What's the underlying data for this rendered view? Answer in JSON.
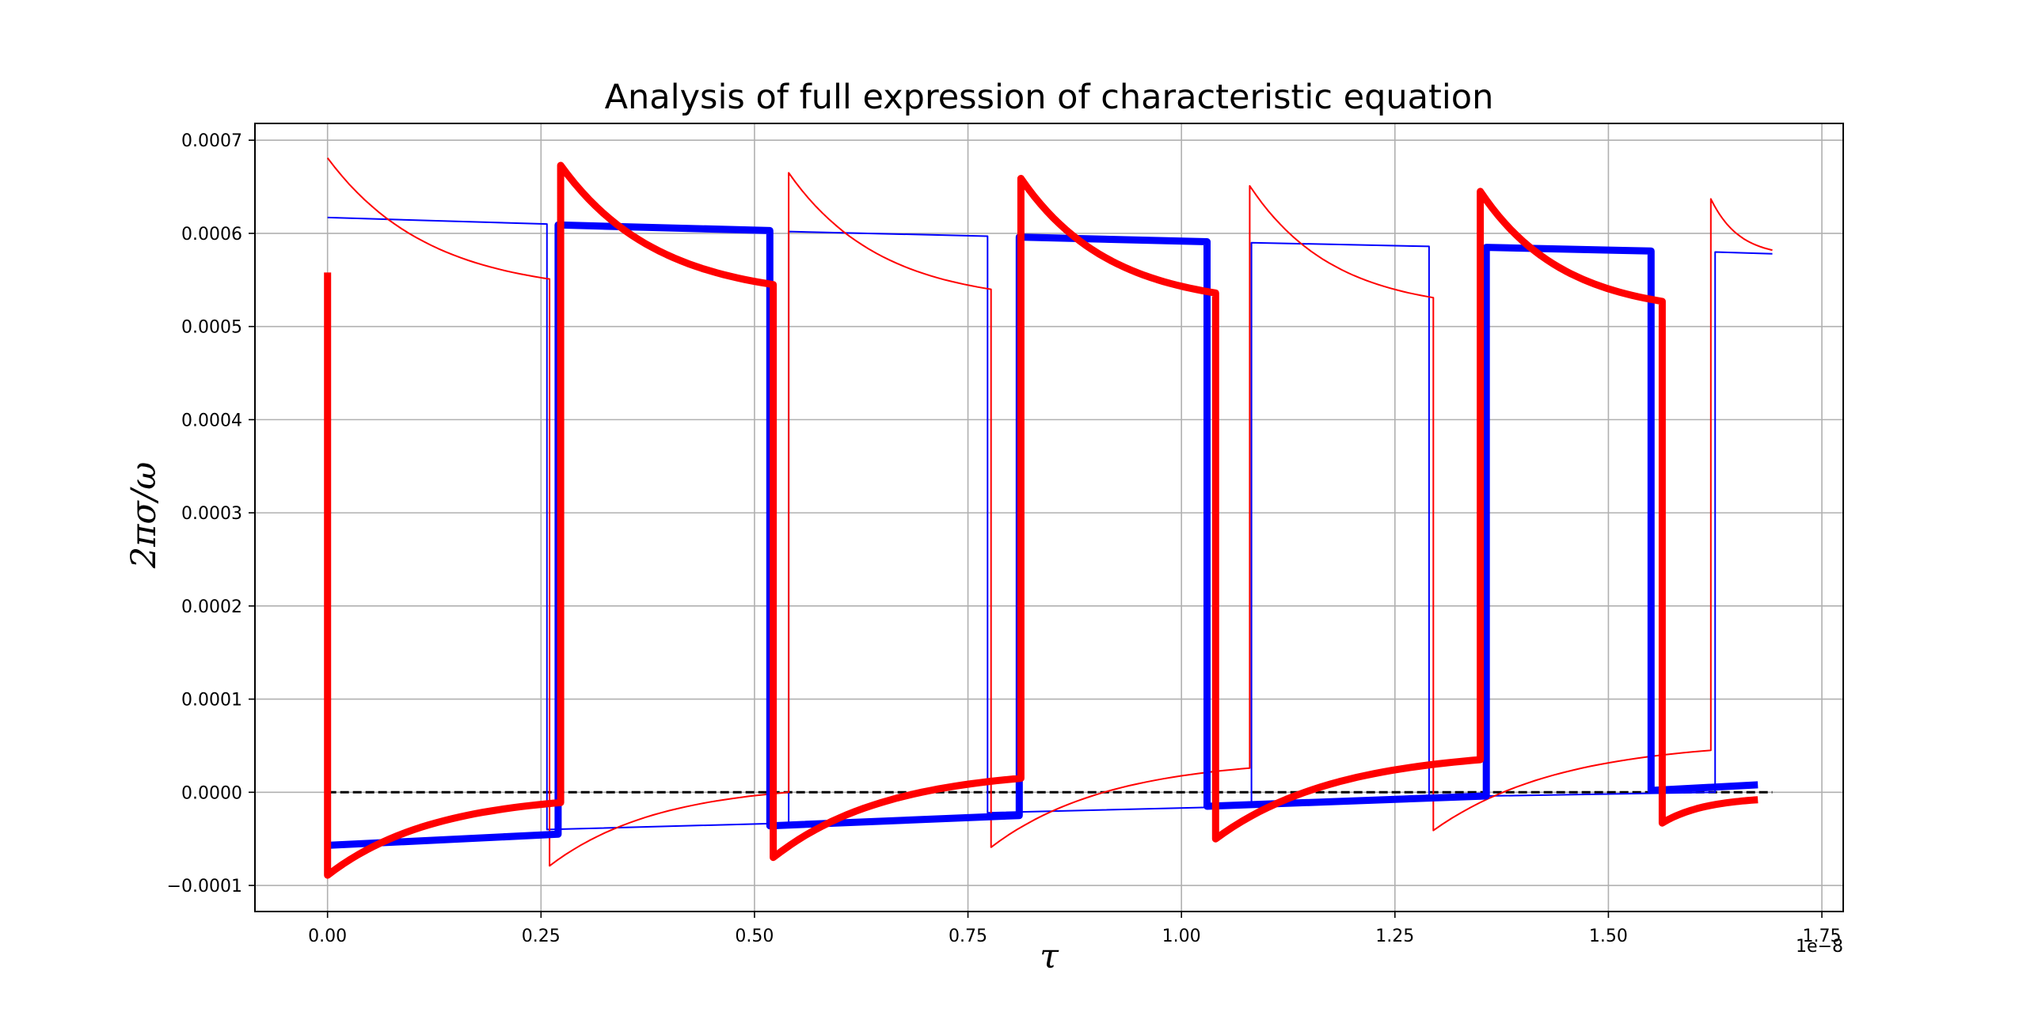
{
  "chart_data": {
    "type": "line",
    "title": "Analysis of full expression of characteristic equation",
    "xlabel": "τ",
    "ylabel": "2πσ/ω",
    "x_offset_text": "1e−8",
    "xlim": [
      -0.085,
      1.775
    ],
    "ylim": [
      -0.000128,
      0.000718
    ],
    "x_ticks": [
      0.0,
      0.25,
      0.5,
      0.75,
      1.0,
      1.25,
      1.5,
      1.75
    ],
    "x_tick_labels": [
      "0.00",
      "0.25",
      "0.50",
      "0.75",
      "1.00",
      "1.25",
      "1.50",
      "1.75"
    ],
    "y_ticks": [
      -0.0001,
      0.0,
      0.0001,
      0.0002,
      0.0003,
      0.0004,
      0.0005,
      0.0006,
      0.0007
    ],
    "y_tick_labels": [
      "−0.0001",
      "0.0000",
      "0.0001",
      "0.0002",
      "0.0003",
      "0.0004",
      "0.0005",
      "0.0006",
      "0.0007"
    ],
    "grid": true,
    "reference_line": {
      "y": 0.0,
      "color": "#000000",
      "style": "dashed"
    },
    "series": [
      {
        "color": "#0000ff",
        "width": "thin",
        "curve": "linear",
        "segments": [
          [
            [
              0.0,
              0.000617
            ],
            [
              0.257,
              0.00061
            ]
          ],
          [
            [
              0.257,
              -4e-05
            ],
            [
              0.54,
              -3.3e-05
            ]
          ],
          [
            [
              0.54,
              0.000602
            ],
            [
              0.773,
              0.000597
            ]
          ],
          [
            [
              0.773,
              -2.2e-05
            ],
            [
              1.082,
              -1.5e-05
            ]
          ],
          [
            [
              1.082,
              0.00059
            ],
            [
              1.29,
              0.000586
            ]
          ],
          [
            [
              1.29,
              -5e-06
            ],
            [
              1.625,
              0.0
            ]
          ],
          [
            [
              1.625,
              0.00058
            ],
            [
              1.692,
              0.000578
            ]
          ]
        ]
      },
      {
        "color": "#ff0000",
        "width": "thin",
        "curve": "exp",
        "segments": [
          [
            [
              0.0,
              0.000681
            ],
            [
              0.26,
              0.000551
            ]
          ],
          [
            [
              0.26,
              -7.9e-05
            ],
            [
              0.54,
              0.0
            ]
          ],
          [
            [
              0.54,
              0.000665
            ],
            [
              0.777,
              0.00054
            ]
          ],
          [
            [
              0.777,
              -5.9e-05
            ],
            [
              1.08,
              2.6e-05
            ]
          ],
          [
            [
              1.08,
              0.000651
            ],
            [
              1.295,
              0.000531
            ]
          ],
          [
            [
              1.295,
              -4.1e-05
            ],
            [
              1.62,
              4.5e-05
            ]
          ],
          [
            [
              1.62,
              0.000637
            ],
            [
              1.692,
              0.000582
            ]
          ]
        ]
      },
      {
        "color": "#0000ff",
        "width": "thick",
        "curve": "linear",
        "segments": [
          [
            [
              0.0,
              -5.7e-05
            ],
            [
              0.27,
              -4.5e-05
            ]
          ],
          [
            [
              0.27,
              0.000609
            ],
            [
              0.518,
              0.000603
            ]
          ],
          [
            [
              0.518,
              -3.6e-05
            ],
            [
              0.81,
              -2.5e-05
            ]
          ],
          [
            [
              0.81,
              0.000596
            ],
            [
              1.03,
              0.000591
            ]
          ],
          [
            [
              1.03,
              -1.5e-05
            ],
            [
              1.357,
              -4e-06
            ]
          ],
          [
            [
              1.357,
              0.000585
            ],
            [
              1.55,
              0.000581
            ]
          ],
          [
            [
              1.55,
              2e-06
            ],
            [
              1.675,
              8e-06
            ]
          ]
        ]
      },
      {
        "color": "#ff0000",
        "width": "thick",
        "curve": "exp",
        "segments": [
          [
            [
              0.0,
              0.000558
            ],
            [
              0.0,
              -8.9e-05
            ]
          ],
          [
            [
              0.0,
              -8.9e-05
            ],
            [
              0.273,
              -1.1e-05
            ]
          ],
          [
            [
              0.273,
              0.000673
            ],
            [
              0.522,
              0.000545
            ]
          ],
          [
            [
              0.522,
              -7e-05
            ],
            [
              0.812,
              1.5e-05
            ]
          ],
          [
            [
              0.812,
              0.000659
            ],
            [
              1.04,
              0.000536
            ]
          ],
          [
            [
              1.04,
              -5e-05
            ],
            [
              1.35,
              3.5e-05
            ]
          ],
          [
            [
              1.35,
              0.000645
            ],
            [
              1.563,
              0.000527
            ]
          ],
          [
            [
              1.563,
              -3.3e-05
            ],
            [
              1.675,
              -8e-06
            ]
          ]
        ]
      }
    ]
  }
}
